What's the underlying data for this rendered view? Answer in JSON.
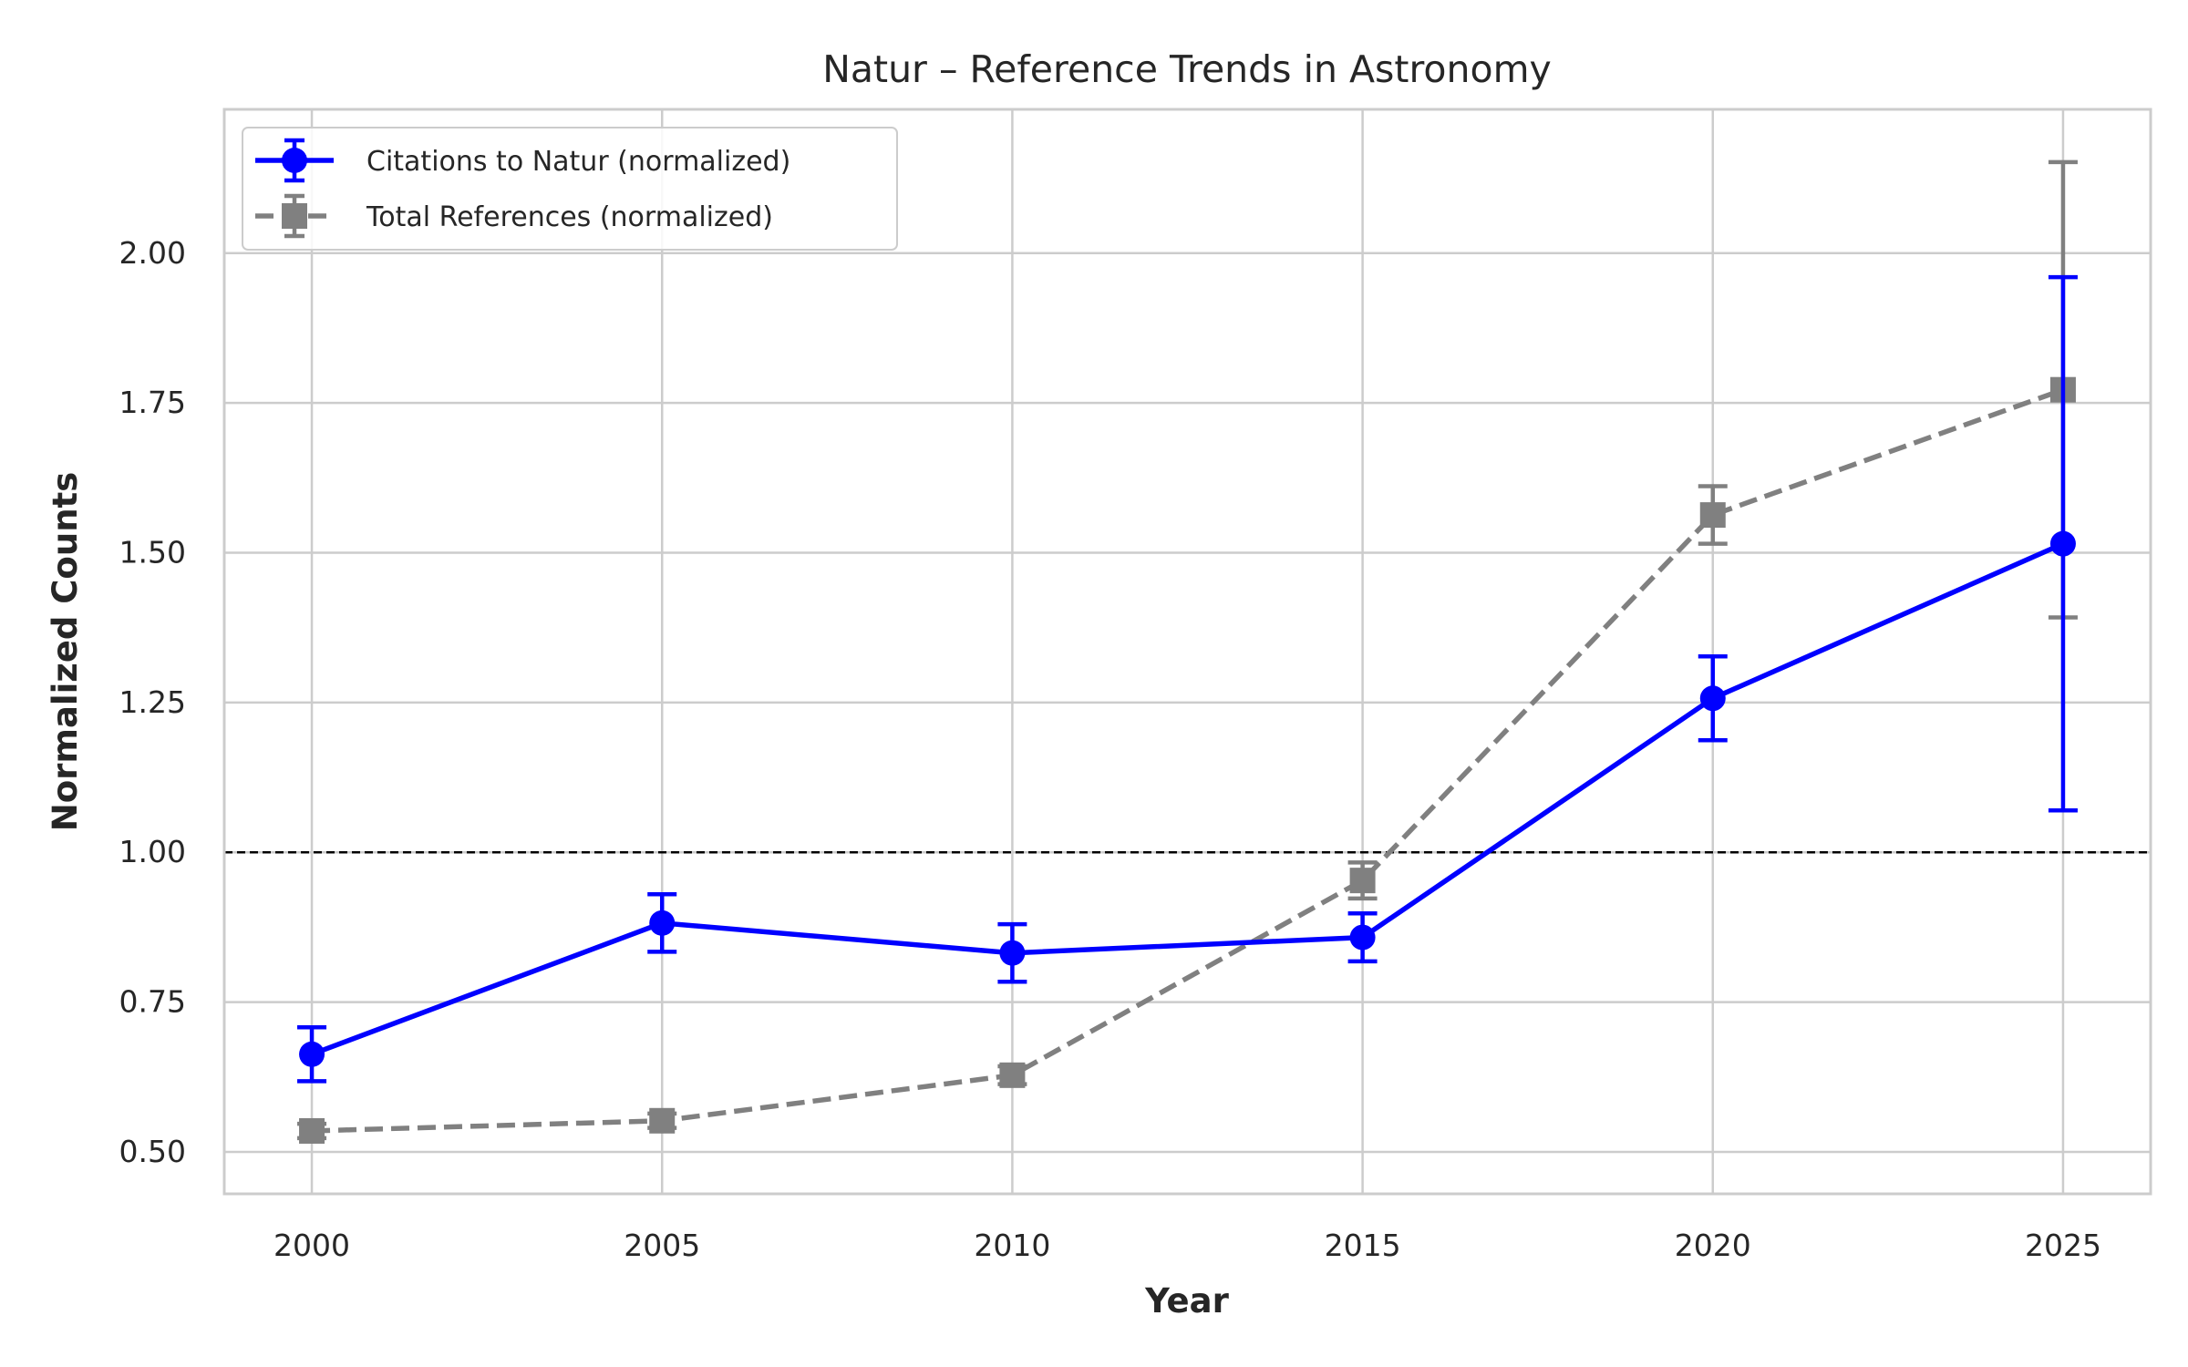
{
  "chart_data": {
    "type": "line",
    "title": "Natur – Reference Trends in Astronomy",
    "xlabel": "Year",
    "ylabel": "Normalized Counts",
    "x": [
      2000,
      2005,
      2010,
      2015,
      2020,
      2025
    ],
    "xlim": [
      1998.75,
      2026.25
    ],
    "ylim": [
      0.43,
      2.24
    ],
    "xticks": [
      2000,
      2005,
      2010,
      2015,
      2020,
      2025
    ],
    "yticks": [
      0.5,
      0.75,
      1.0,
      1.25,
      1.5,
      1.75,
      2.0
    ],
    "xtick_labels": [
      "2000",
      "2005",
      "2010",
      "2015",
      "2020",
      "2025"
    ],
    "ytick_labels": [
      "0.50",
      "0.75",
      "1.00",
      "1.25",
      "1.50",
      "1.75",
      "2.00"
    ],
    "grid": true,
    "legend_position": "top-left",
    "reference_line": {
      "y": 1.0,
      "style": "dashed",
      "color": "#000000"
    },
    "series": [
      {
        "name": "Citations to Natur (normalized)",
        "values": [
          0.663,
          0.882,
          0.832,
          0.858,
          1.257,
          1.515
        ],
        "errors": [
          0.045,
          0.048,
          0.048,
          0.04,
          0.07,
          0.445
        ],
        "color": "#0000ff",
        "marker": "circle",
        "line_style": "solid"
      },
      {
        "name": "Total References (normalized)",
        "values": [
          0.535,
          0.552,
          0.628,
          0.953,
          1.563,
          1.772
        ],
        "errors": [
          0.012,
          0.012,
          0.015,
          0.03,
          0.048,
          0.38
        ],
        "color": "#808080",
        "marker": "square",
        "line_style": "dashed"
      }
    ]
  }
}
